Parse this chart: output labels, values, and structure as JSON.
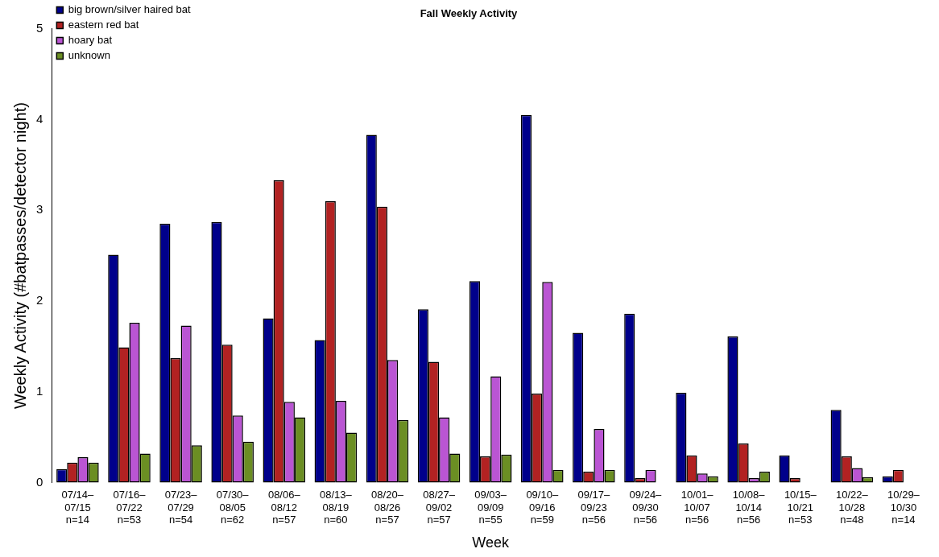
{
  "chart_data": {
    "type": "bar",
    "title": "Fall Weekly Activity",
    "xlabel": "Week",
    "ylabel": "Weekly Activity (#batpasses/detector night)",
    "categories": [
      "07/14–\n07/15\nn=14",
      "07/16–\n07/22\nn=53",
      "07/23–\n07/29\nn=54",
      "07/30–\n08/05\nn=62",
      "08/06–\n08/12\nn=57",
      "08/13–\n08/19\nn=60",
      "08/20–\n08/26\nn=57",
      "08/27–\n09/02\nn=57",
      "09/03–\n09/09\nn=55",
      "09/10–\n09/16\nn=59",
      "09/17–\n09/23\nn=56",
      "09/24–\n09/30\nn=56",
      "10/01–\n10/07\nn=56",
      "10/08–\n10/14\nn=56",
      "10/15–\n10/21\nn=53",
      "10/22–\n10/28\nn=48",
      "10/29–\n10/30\nn=14"
    ],
    "series": [
      {
        "name": "big brown/silver haired bat",
        "color": "#00008b",
        "values": [
          0.15,
          2.51,
          2.85,
          2.87,
          1.81,
          1.57,
          3.83,
          1.91,
          2.22,
          4.05,
          1.65,
          1.86,
          0.99,
          1.61,
          0.3,
          0.8,
          0.07
        ]
      },
      {
        "name": "eastern red bat",
        "color": "#b22222",
        "values": [
          0.22,
          1.49,
          1.37,
          1.52,
          3.33,
          3.1,
          3.04,
          1.33,
          0.29,
          0.98,
          0.12,
          0.05,
          0.3,
          0.43,
          0.05,
          0.29,
          0.14
        ]
      },
      {
        "name": "hoary bat",
        "color": "#ba55d3",
        "values": [
          0.28,
          1.76,
          1.73,
          0.74,
          0.89,
          0.9,
          1.35,
          0.72,
          1.17,
          2.21,
          0.59,
          0.14,
          0.1,
          0.05,
          0,
          0.16,
          0
        ]
      },
      {
        "name": "unknown",
        "color": "#6b8e23",
        "values": [
          0.22,
          0.32,
          0.41,
          0.45,
          0.72,
          0.55,
          0.69,
          0.32,
          0.31,
          0.14,
          0.14,
          0,
          0.07,
          0.12,
          0,
          0.06,
          0
        ]
      }
    ],
    "ylim": [
      0,
      5
    ],
    "yticks": [
      0,
      1,
      2,
      3,
      4,
      5
    ],
    "grid": false,
    "legend": "top left"
  }
}
